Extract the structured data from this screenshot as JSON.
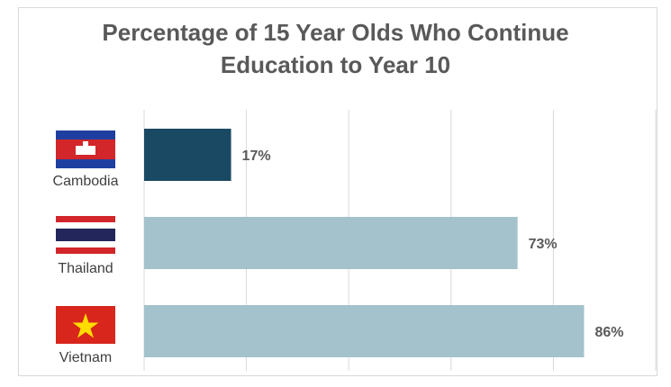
{
  "chart_data": {
    "type": "bar",
    "orientation": "horizontal",
    "title_line1": "Percentage of 15 Year Olds Who Continue",
    "title_line2": "Education to Year 10",
    "categories": [
      "Cambodia",
      "Thailand",
      "Vietnam"
    ],
    "values": [
      17,
      73,
      86
    ],
    "value_labels": [
      "17%",
      "73%",
      "86%"
    ],
    "xlim": [
      0,
      100
    ],
    "grid": true,
    "colors": {
      "highlight": "#1a4963",
      "default": "#a3c2cb",
      "grid": "#d9d9d9",
      "text": "#595959"
    },
    "bar_colors": [
      "#1a4963",
      "#a3c2cb",
      "#a3c2cb"
    ],
    "flags": [
      "cambodia-flag-icon",
      "thailand-flag-icon",
      "vietnam-flag-icon"
    ]
  }
}
